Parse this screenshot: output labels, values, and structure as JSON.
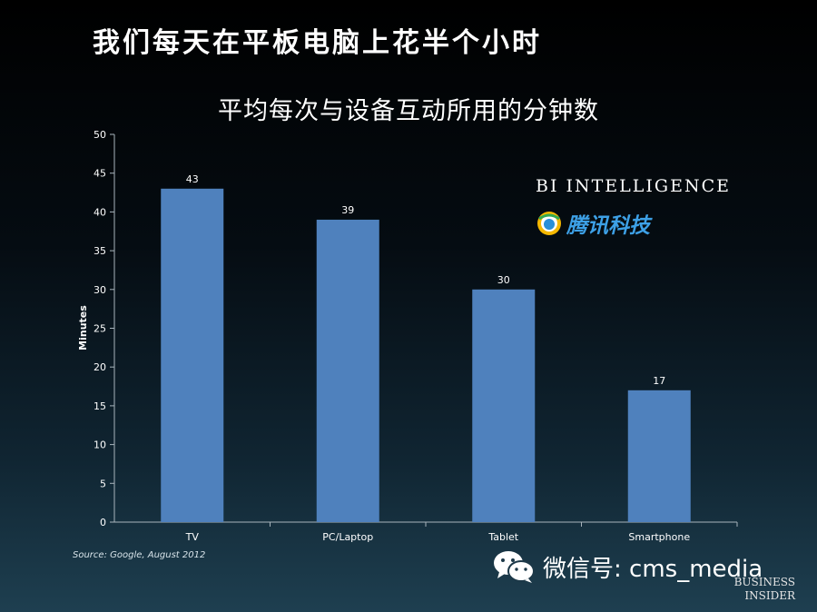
{
  "page_title": "我们每天在平板电脑上花半个小时",
  "chart_data": {
    "type": "bar",
    "title": "平均每次与设备互动所用的分钟数",
    "xlabel": "",
    "ylabel": "Minutes",
    "categories": [
      "TV",
      "PC/Laptop",
      "Tablet",
      "Smartphone"
    ],
    "values": [
      43,
      39,
      30,
      17
    ],
    "data_labels": [
      "43",
      "39",
      "30",
      "17"
    ],
    "ylim": [
      0,
      50
    ],
    "yticks": [
      0,
      5,
      10,
      15,
      20,
      25,
      30,
      35,
      40,
      45,
      50
    ],
    "grid": false,
    "bar_color": "#4f81bd"
  },
  "source": "Source: Google, August 2012",
  "logos": {
    "bi_intelligence": "BI INTELLIGENCE",
    "tencent_tech": "腾讯科技",
    "business_insider": [
      "BUSINESS",
      "INSIDER"
    ]
  },
  "wechat": {
    "label": "微信号: cms_media",
    "icon": "wechat-icon"
  },
  "colors": {
    "axis": "#a8b4bc",
    "tick_text": "#ffffff",
    "tencent_blue": "#3da0e6"
  }
}
